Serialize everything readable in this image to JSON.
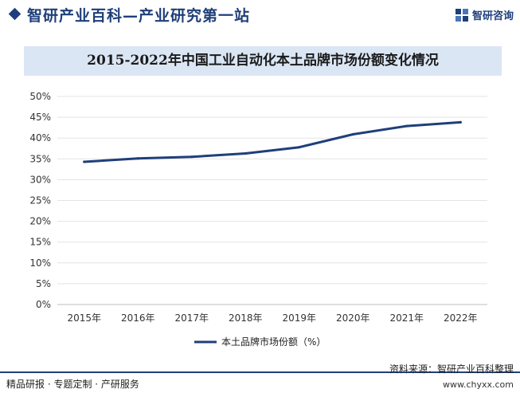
{
  "header": {
    "title": "智研产业百科—产业研究第一站",
    "brand": "智研咨询"
  },
  "chart_data": {
    "type": "line",
    "title": "2015-2022年中国工业自动化本土品牌市场份额变化情况",
    "categories": [
      "2015年",
      "2016年",
      "2017年",
      "2018年",
      "2019年",
      "2020年",
      "2021年",
      "2022年"
    ],
    "series": [
      {
        "name": "本土品牌市场份额（%）",
        "values": [
          34.3,
          35.1,
          35.5,
          36.3,
          37.8,
          40.9,
          42.9,
          43.8
        ],
        "color": "#1f3f7a"
      }
    ],
    "ylim": [
      0,
      50
    ],
    "yticks": [
      "0%",
      "5%",
      "10%",
      "15%",
      "20%",
      "25%",
      "30%",
      "35%",
      "40%",
      "45%",
      "50%"
    ],
    "grid": true,
    "legend": "bottom"
  },
  "footer": {
    "left": "精品研报 · 专题定制 · 产研服务",
    "source": "资料来源：智研产业百科整理",
    "url": "www.chyxx.com"
  },
  "colors": {
    "brand": "#1f3f7a",
    "title_band": "#dbe6f5",
    "grid": "#e3e3e3"
  }
}
